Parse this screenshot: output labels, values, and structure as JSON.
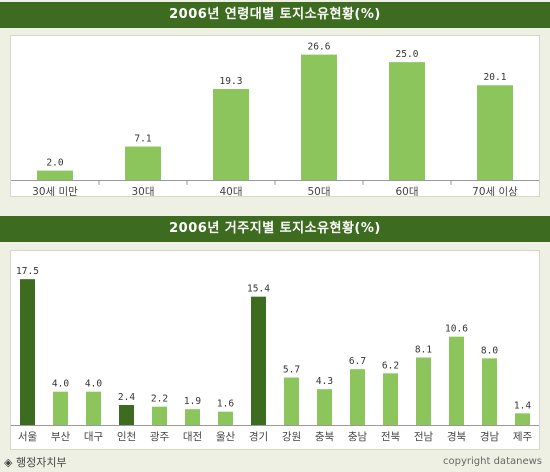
{
  "chart_data": [
    {
      "type": "bar",
      "title": "2006년 연령대별 토지소유현황(%)",
      "categories": [
        "30세 미만",
        "30대",
        "40대",
        "50대",
        "60대",
        "70세 이상"
      ],
      "values": [
        2.0,
        7.1,
        19.3,
        26.6,
        25.0,
        20.1
      ],
      "value_labels": [
        "2.0",
        "7.1",
        "19.3",
        "26.6",
        "25.0",
        "20.1"
      ],
      "bar_color": "#8cc55c",
      "ylim": [
        0,
        28
      ]
    },
    {
      "type": "bar",
      "title": "2006년 거주지별 토지소유현황(%)",
      "categories": [
        "서울",
        "부산",
        "대구",
        "인천",
        "광주",
        "대전",
        "울산",
        "경기",
        "강원",
        "충북",
        "충남",
        "전북",
        "전남",
        "경북",
        "경남",
        "제주"
      ],
      "values": [
        17.5,
        4.0,
        4.0,
        2.4,
        2.2,
        1.9,
        1.6,
        15.4,
        5.7,
        4.3,
        6.7,
        6.2,
        8.1,
        10.6,
        8.0,
        1.4
      ],
      "value_labels": [
        "17.5",
        "4.0",
        "4.0",
        "2.4",
        "2.2",
        "1.9",
        "1.6",
        "15.4",
        "5.7",
        "4.3",
        "6.7",
        "6.2",
        "8.1",
        "10.6",
        "8.0",
        "1.4"
      ],
      "highlighted": [
        "서울",
        "인천",
        "경기"
      ],
      "bar_color": "#8cc55c",
      "highlight_color": "#3d6b1f",
      "ylim": [
        0,
        18
      ]
    }
  ],
  "footer": {
    "source": "◈ 행정자치부",
    "copyright": "copyright datanews"
  }
}
